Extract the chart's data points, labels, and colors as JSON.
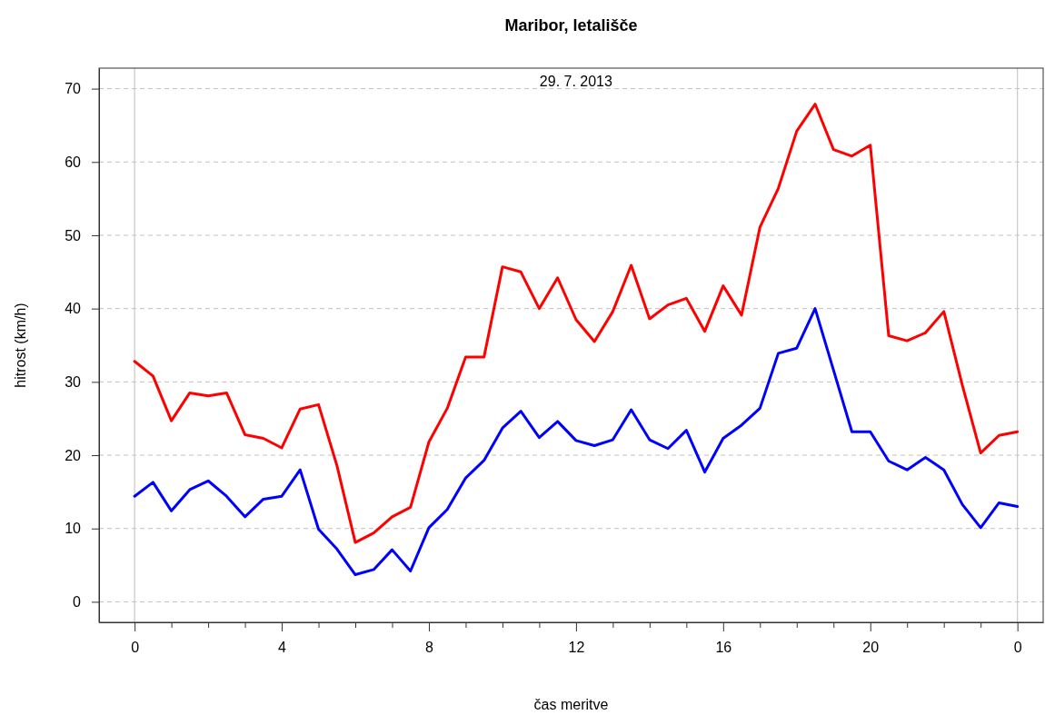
{
  "chart_data": {
    "type": "line",
    "title": "Maribor, letališče",
    "xlabel": "čas meritve",
    "ylabel": "hitrost (km/h)",
    "annotations": [
      "29. 7. 2013"
    ],
    "x": [
      "2013-07-29T00:00",
      "2013-07-29T00:30",
      "2013-07-29T01:00",
      "2013-07-29T01:30",
      "2013-07-29T02:00",
      "2013-07-29T02:30",
      "2013-07-29T03:00",
      "2013-07-29T03:30",
      "2013-07-29T04:00",
      "2013-07-29T04:30",
      "2013-07-29T05:00",
      "2013-07-29T05:30",
      "2013-07-29T06:00",
      "2013-07-29T06:30",
      "2013-07-29T07:00",
      "2013-07-29T07:30",
      "2013-07-29T08:00",
      "2013-07-29T08:30",
      "2013-07-29T09:00",
      "2013-07-29T09:30",
      "2013-07-29T10:00",
      "2013-07-29T10:30",
      "2013-07-29T11:00",
      "2013-07-29T11:30",
      "2013-07-29T12:00",
      "2013-07-29T12:30",
      "2013-07-29T13:00",
      "2013-07-29T13:30",
      "2013-07-29T14:00",
      "2013-07-29T14:30",
      "2013-07-29T15:00",
      "2013-07-29T15:30",
      "2013-07-29T16:00",
      "2013-07-29T16:30",
      "2013-07-29T17:00",
      "2013-07-29T17:30",
      "2013-07-29T18:00",
      "2013-07-29T18:30",
      "2013-07-29T19:00",
      "2013-07-29T19:30",
      "2013-07-29T20:00",
      "2013-07-29T20:30",
      "2013-07-29T21:00",
      "2013-07-29T21:30",
      "2013-07-29T22:00",
      "2013-07-29T22:30",
      "2013-07-29T23:00",
      "2013-07-29T23:30",
      "2013-07-30T00:00"
    ],
    "series": [
      {
        "color": "#ff0000",
        "values": [
          32.8,
          30.8,
          24.7,
          28.5,
          28.1,
          28.5,
          22.8,
          22.3,
          21.0,
          26.3,
          26.9,
          18.6,
          8.1,
          9.4,
          11.6,
          12.9,
          21.8,
          26.4,
          33.4,
          33.4,
          45.7,
          45.0,
          40.0,
          44.2,
          38.5,
          35.5,
          39.6,
          45.9,
          38.6,
          40.5,
          41.4,
          36.9,
          43.1,
          39.1,
          51.1,
          56.4,
          64.2,
          67.9,
          61.7,
          60.8,
          62.3,
          36.3,
          35.6,
          36.7,
          39.6,
          29.6,
          20.3,
          22.7,
          23.2
        ]
      },
      {
        "color": "#0000ff",
        "values": [
          14.4,
          16.3,
          12.4,
          15.3,
          16.5,
          14.4,
          11.6,
          14.0,
          14.4,
          18.0,
          9.9,
          7.2,
          3.7,
          4.4,
          7.1,
          4.2,
          10.1,
          12.6,
          16.9,
          19.3,
          23.7,
          26.0,
          22.4,
          24.6,
          22.0,
          21.3,
          22.1,
          26.2,
          22.1,
          20.9,
          23.4,
          17.7,
          22.3,
          24.1,
          26.4,
          33.9,
          34.6,
          40.0,
          31.6,
          23.2,
          23.2,
          19.2,
          18.0,
          19.7,
          18.0,
          13.3,
          10.1,
          13.5,
          13.0
        ]
      }
    ],
    "xlim": [
      "2013-07-28T23:02",
      "2013-07-30T00:42"
    ],
    "ylim": [
      -2.8,
      72.8
    ],
    "xticks": [
      {
        "value": "2013-07-29T00:00",
        "label": "0"
      },
      {
        "value": "2013-07-29T01:00",
        "label": null
      },
      {
        "value": "2013-07-29T02:00",
        "label": null
      },
      {
        "value": "2013-07-29T03:00",
        "label": null
      },
      {
        "value": "2013-07-29T04:00",
        "label": "4"
      },
      {
        "value": "2013-07-29T05:00",
        "label": null
      },
      {
        "value": "2013-07-29T06:00",
        "label": null
      },
      {
        "value": "2013-07-29T07:00",
        "label": null
      },
      {
        "value": "2013-07-29T08:00",
        "label": "8"
      },
      {
        "value": "2013-07-29T09:00",
        "label": null
      },
      {
        "value": "2013-07-29T10:00",
        "label": null
      },
      {
        "value": "2013-07-29T11:00",
        "label": null
      },
      {
        "value": "2013-07-29T12:00",
        "label": "12"
      },
      {
        "value": "2013-07-29T13:00",
        "label": null
      },
      {
        "value": "2013-07-29T14:00",
        "label": null
      },
      {
        "value": "2013-07-29T15:00",
        "label": null
      },
      {
        "value": "2013-07-29T16:00",
        "label": "16"
      },
      {
        "value": "2013-07-29T17:00",
        "label": null
      },
      {
        "value": "2013-07-29T18:00",
        "label": null
      },
      {
        "value": "2013-07-29T19:00",
        "label": null
      },
      {
        "value": "2013-07-29T20:00",
        "label": "20"
      },
      {
        "value": "2013-07-29T21:00",
        "label": null
      },
      {
        "value": "2013-07-29T22:00",
        "label": null
      },
      {
        "value": "2013-07-29T23:00",
        "label": null
      },
      {
        "value": "2013-07-30T00:00",
        "label": "0"
      }
    ],
    "yticks": [
      0,
      10,
      20,
      30,
      40,
      50,
      60,
      70
    ],
    "grid": "y",
    "line_style": "solid",
    "ref_lines": [
      {
        "axis": "x",
        "value": "2013-07-29T00:00",
        "color": "#c8c8c8"
      },
      {
        "axis": "x",
        "value": "2013-07-30T00:00",
        "color": "#c8c8c8"
      }
    ]
  }
}
